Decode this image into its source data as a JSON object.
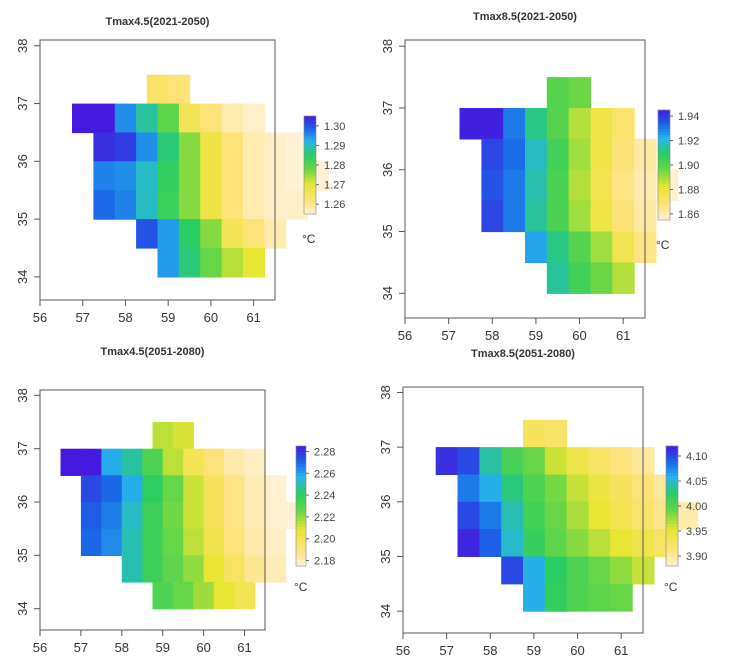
{
  "chart_data": [
    {
      "type": "heatmap",
      "title": "Tmax4.5(2021-2050)",
      "unit": "°C",
      "xticks": [
        "56",
        "57",
        "58",
        "59",
        "60",
        "61"
      ],
      "yticks": [
        "38",
        "37",
        "36",
        "35",
        "34"
      ],
      "xlim": [
        56,
        61.5
      ],
      "ylim": [
        33.6,
        38.1
      ],
      "legend_ticks": [
        "1.30",
        "1.29",
        "1.28",
        "1.27",
        "1.26"
      ],
      "legend_range": [
        1.255,
        1.305
      ],
      "cell_size": 0.5,
      "rows": [
        {
          "y": 37.25,
          "x0": 58.5,
          "values": [
            1.264,
            1.262
          ]
        },
        {
          "y": 36.75,
          "x0": 56.75,
          "values": [
            1.305,
            1.305,
            1.295,
            1.288,
            1.279,
            1.266,
            1.262,
            1.258,
            1.256
          ]
        },
        {
          "y": 36.25,
          "x0": 57.25,
          "values": [
            1.303,
            1.302,
            1.295,
            1.286,
            1.276,
            1.268,
            1.262,
            1.258,
            1.256,
            1.255
          ]
        },
        {
          "y": 35.75,
          "x0": 57.25,
          "values": [
            1.296,
            1.295,
            1.29,
            1.284,
            1.276,
            1.268,
            1.262,
            1.258,
            1.256,
            1.255,
            1.255
          ]
        },
        {
          "y": 35.25,
          "x0": 57.25,
          "values": [
            1.298,
            1.296,
            1.29,
            1.283,
            1.276,
            1.268,
            1.262,
            1.258,
            1.256,
            1.256
          ]
        },
        {
          "y": 34.75,
          "x0": 58.25,
          "values": [
            1.3,
            1.294,
            1.285,
            1.276,
            1.266,
            1.262,
            1.258
          ]
        },
        {
          "y": 34.25,
          "x0": 58.75,
          "values": [
            1.294,
            1.286,
            1.278,
            1.273,
            1.27
          ]
        }
      ]
    },
    {
      "type": "heatmap",
      "title": "Tmax8.5(2021-2050)",
      "unit": "°C",
      "xticks": [
        "56",
        "57",
        "58",
        "59",
        "60",
        "61"
      ],
      "yticks": [
        "38",
        "37",
        "36",
        "35",
        "34"
      ],
      "xlim": [
        56,
        61.5
      ],
      "ylim": [
        33.6,
        38.1
      ],
      "legend_ticks": [
        "1.94",
        "1.92",
        "1.90",
        "1.88",
        "1.86"
      ],
      "legend_range": [
        1.855,
        1.945
      ],
      "cell_size": 0.5,
      "rows": [
        {
          "y": 37.25,
          "x0": 59.25,
          "values": [
            1.9,
            1.896
          ]
        },
        {
          "y": 36.75,
          "x0": 57.25,
          "values": [
            1.944,
            1.944,
            1.93,
            1.912,
            1.9,
            1.888,
            1.878,
            1.87
          ]
        },
        {
          "y": 36.25,
          "x0": 57.75,
          "values": [
            1.938,
            1.932,
            1.918,
            1.904,
            1.89,
            1.878,
            1.868,
            1.862
          ]
        },
        {
          "y": 35.75,
          "x0": 57.75,
          "values": [
            1.936,
            1.93,
            1.916,
            1.902,
            1.888,
            1.876,
            1.866,
            1.86,
            1.856
          ]
        },
        {
          "y": 35.25,
          "x0": 57.75,
          "values": [
            1.938,
            1.93,
            1.914,
            1.902,
            1.89,
            1.878,
            1.868,
            1.862
          ]
        },
        {
          "y": 34.75,
          "x0": 58.75,
          "values": [
            1.924,
            1.912,
            1.9,
            1.89,
            1.876,
            1.866
          ]
        },
        {
          "y": 34.25,
          "x0": 59.25,
          "values": [
            1.914,
            1.904,
            1.896,
            1.888
          ]
        }
      ]
    },
    {
      "type": "heatmap",
      "title": "Tmax4.5(2051-2080)",
      "unit": "°C",
      "xticks": [
        "56",
        "57",
        "58",
        "59",
        "60",
        "61"
      ],
      "yticks": [
        "38",
        "37",
        "36",
        "35",
        "34"
      ],
      "xlim": [
        56,
        61.5
      ],
      "ylim": [
        33.6,
        38.1
      ],
      "legend_ticks": [
        "2.28",
        "2.26",
        "2.24",
        "2.22",
        "2.20",
        "2.18"
      ],
      "legend_range": [
        2.175,
        2.285
      ],
      "cell_size": 0.5,
      "rows": [
        {
          "y": 37.25,
          "x0": 58.75,
          "values": [
            2.214,
            2.21
          ]
        },
        {
          "y": 36.75,
          "x0": 56.5,
          "values": [
            2.285,
            2.285,
            2.258,
            2.248,
            2.232,
            2.214,
            2.2,
            2.19,
            2.182,
            2.178
          ]
        },
        {
          "y": 36.25,
          "x0": 57.0,
          "values": [
            2.276,
            2.27,
            2.258,
            2.24,
            2.226,
            2.212,
            2.198,
            2.188,
            2.18,
            2.176
          ]
        },
        {
          "y": 35.75,
          "x0": 57.0,
          "values": [
            2.272,
            2.266,
            2.252,
            2.236,
            2.224,
            2.212,
            2.198,
            2.188,
            2.18,
            2.176,
            2.175
          ]
        },
        {
          "y": 35.25,
          "x0": 57.0,
          "values": [
            2.27,
            2.264,
            2.25,
            2.236,
            2.226,
            2.214,
            2.202,
            2.19,
            2.182,
            2.178
          ]
        },
        {
          "y": 34.75,
          "x0": 58.0,
          "values": [
            2.25,
            2.236,
            2.228,
            2.22,
            2.208,
            2.196,
            2.186,
            2.18
          ]
        },
        {
          "y": 34.25,
          "x0": 58.75,
          "values": [
            2.232,
            2.226,
            2.218,
            2.208,
            2.2
          ]
        }
      ]
    },
    {
      "type": "heatmap",
      "title": "Tmax8.5(2051-2080)",
      "unit": "°C",
      "xticks": [
        "56",
        "57",
        "58",
        "59",
        "60",
        "61"
      ],
      "yticks": [
        "38",
        "37",
        "36",
        "35",
        "34"
      ],
      "xlim": [
        56,
        61.5
      ],
      "ylim": [
        33.6,
        38.1
      ],
      "legend_ticks": [
        "4.10",
        "4.05",
        "4.00",
        "3.95",
        "3.90"
      ],
      "legend_range": [
        3.88,
        4.12
      ],
      "cell_size": 0.5,
      "rows": [
        {
          "y": 37.25,
          "x0": 58.75,
          "values": [
            3.93,
            3.922
          ]
        },
        {
          "y": 36.75,
          "x0": 56.75,
          "values": [
            4.11,
            4.1,
            4.04,
            4.008,
            3.99,
            3.96,
            3.94,
            3.925,
            3.912,
            3.9
          ]
        },
        {
          "y": 36.25,
          "x0": 57.25,
          "values": [
            4.08,
            4.06,
            4.03,
            4.004,
            3.986,
            3.962,
            3.944,
            3.928,
            3.914,
            3.902
          ]
        },
        {
          "y": 35.75,
          "x0": 57.25,
          "values": [
            4.1,
            4.08,
            4.044,
            4.01,
            3.99,
            3.97,
            3.952,
            3.936,
            3.92,
            3.906,
            3.895
          ]
        },
        {
          "y": 35.25,
          "x0": 57.25,
          "values": [
            4.115,
            4.09,
            4.05,
            4.016,
            3.996,
            3.98,
            3.966,
            3.952,
            3.938,
            3.926
          ]
        },
        {
          "y": 34.75,
          "x0": 58.25,
          "values": [
            4.1,
            4.06,
            4.024,
            4.004,
            3.99,
            3.978,
            3.962
          ]
        },
        {
          "y": 34.25,
          "x0": 58.75,
          "values": [
            4.06,
            4.02,
            4.004,
            3.996,
            3.99
          ]
        }
      ]
    }
  ]
}
